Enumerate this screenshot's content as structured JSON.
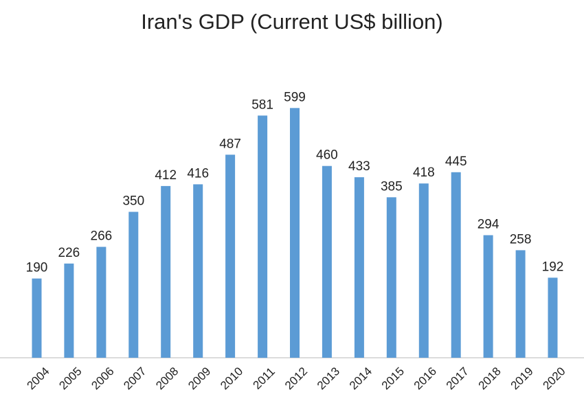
{
  "chart_data": {
    "type": "bar",
    "title": "Iran's GDP (Current US$ billion)",
    "categories": [
      "2004",
      "2005",
      "2006",
      "2007",
      "2008",
      "2009",
      "2010",
      "2011",
      "2012",
      "2013",
      "2014",
      "2015",
      "2016",
      "2017",
      "2018",
      "2019",
      "2020"
    ],
    "values": [
      190,
      226,
      266,
      350,
      412,
      416,
      487,
      581,
      599,
      460,
      433,
      385,
      418,
      445,
      294,
      258,
      192
    ],
    "data_labels": [
      "190",
      "226",
      "266",
      "350",
      "412",
      "416",
      "487",
      "581",
      "599",
      "460",
      "433",
      "385",
      "418",
      "445",
      "294",
      "258",
      "192"
    ],
    "xlabel": "",
    "ylabel": "",
    "ylim": [
      0,
      700
    ],
    "grid": false,
    "legend": "none",
    "bar_color": "#5b9bd5"
  }
}
